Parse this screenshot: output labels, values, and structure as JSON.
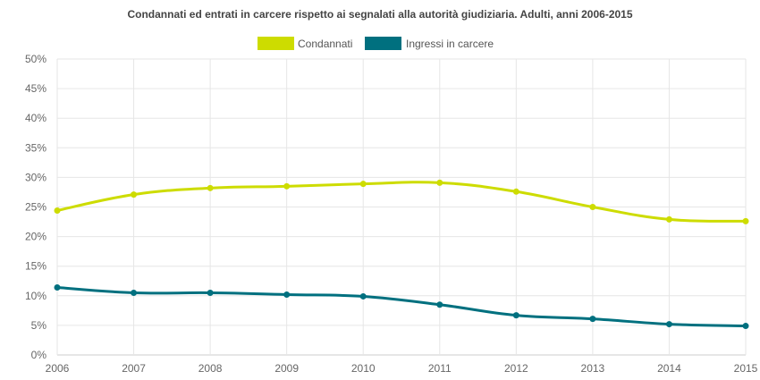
{
  "chart_data": {
    "type": "line",
    "title": "Condannati ed entrati in carcere rispetto ai segnalati alla autorità giudiziaria. Adulti, anni 2006-2015",
    "xlabel": "",
    "ylabel": "",
    "categories": [
      "2006",
      "2007",
      "2008",
      "2009",
      "2010",
      "2011",
      "2012",
      "2013",
      "2014",
      "2015"
    ],
    "ylim": [
      0,
      50
    ],
    "yticks": [
      "0%",
      "5%",
      "10%",
      "15%",
      "20%",
      "25%",
      "30%",
      "35%",
      "40%",
      "45%",
      "50%"
    ],
    "grid": true,
    "legend_position": "top-center",
    "series": [
      {
        "name": "Condannati",
        "color": "#cddc00",
        "values": [
          24.4,
          27.1,
          28.2,
          28.5,
          28.9,
          29.1,
          27.6,
          25.0,
          22.9,
          22.6
        ]
      },
      {
        "name": "Ingressi in carcere",
        "color": "#00707f",
        "values": [
          11.4,
          10.5,
          10.5,
          10.2,
          9.9,
          8.5,
          6.7,
          6.1,
          5.2,
          4.9
        ]
      }
    ]
  }
}
